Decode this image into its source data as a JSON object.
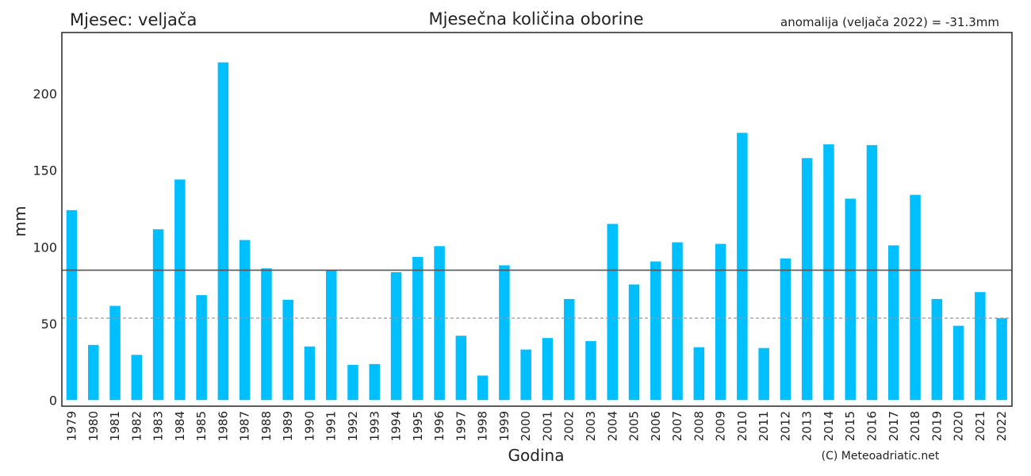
{
  "header": {
    "month_label": "Mjesec: veljača",
    "title": "Mjesečna količina oborine",
    "anomaly": "anomalija (veljača 2022) = -31.3mm"
  },
  "credit": "(C) Meteoadriatic.net",
  "colors": {
    "bar": "#00bfff",
    "mean_line": "#555555",
    "current_line": "#999999",
    "frame": "#333333"
  },
  "chart_data": {
    "type": "bar",
    "xlabel": "Godina",
    "ylabel": "mm",
    "ylim": [
      -4,
      240
    ],
    "yticks": [
      0,
      50,
      100,
      150,
      200
    ],
    "grid": false,
    "categories": [
      "1979",
      "1980",
      "1981",
      "1982",
      "1983",
      "1984",
      "1985",
      "1986",
      "1987",
      "1988",
      "1989",
      "1990",
      "1991",
      "1992",
      "1993",
      "1994",
      "1995",
      "1996",
      "1997",
      "1998",
      "1999",
      "2000",
      "2001",
      "2002",
      "2003",
      "2004",
      "2005",
      "2006",
      "2007",
      "2008",
      "2009",
      "2010",
      "2011",
      "2012",
      "2013",
      "2014",
      "2015",
      "2016",
      "2017",
      "2018",
      "2019",
      "2020",
      "2021",
      "2022"
    ],
    "values": [
      124,
      36,
      61.5,
      29.5,
      111.5,
      144,
      68.5,
      220.5,
      104.5,
      86,
      65.5,
      35,
      84.5,
      23,
      23.5,
      83.5,
      93.5,
      100.5,
      42,
      16,
      88,
      33,
      40.5,
      66,
      38.5,
      115,
      75.5,
      90.5,
      103,
      34.5,
      102,
      174.5,
      34,
      92.5,
      158,
      167,
      131.5,
      166.5,
      101,
      134,
      66,
      48.5,
      70.5,
      53.5
    ],
    "reference_lines": [
      {
        "value": 84.8,
        "style": "solid"
      },
      {
        "value": 53.5,
        "style": "dashed"
      }
    ]
  }
}
